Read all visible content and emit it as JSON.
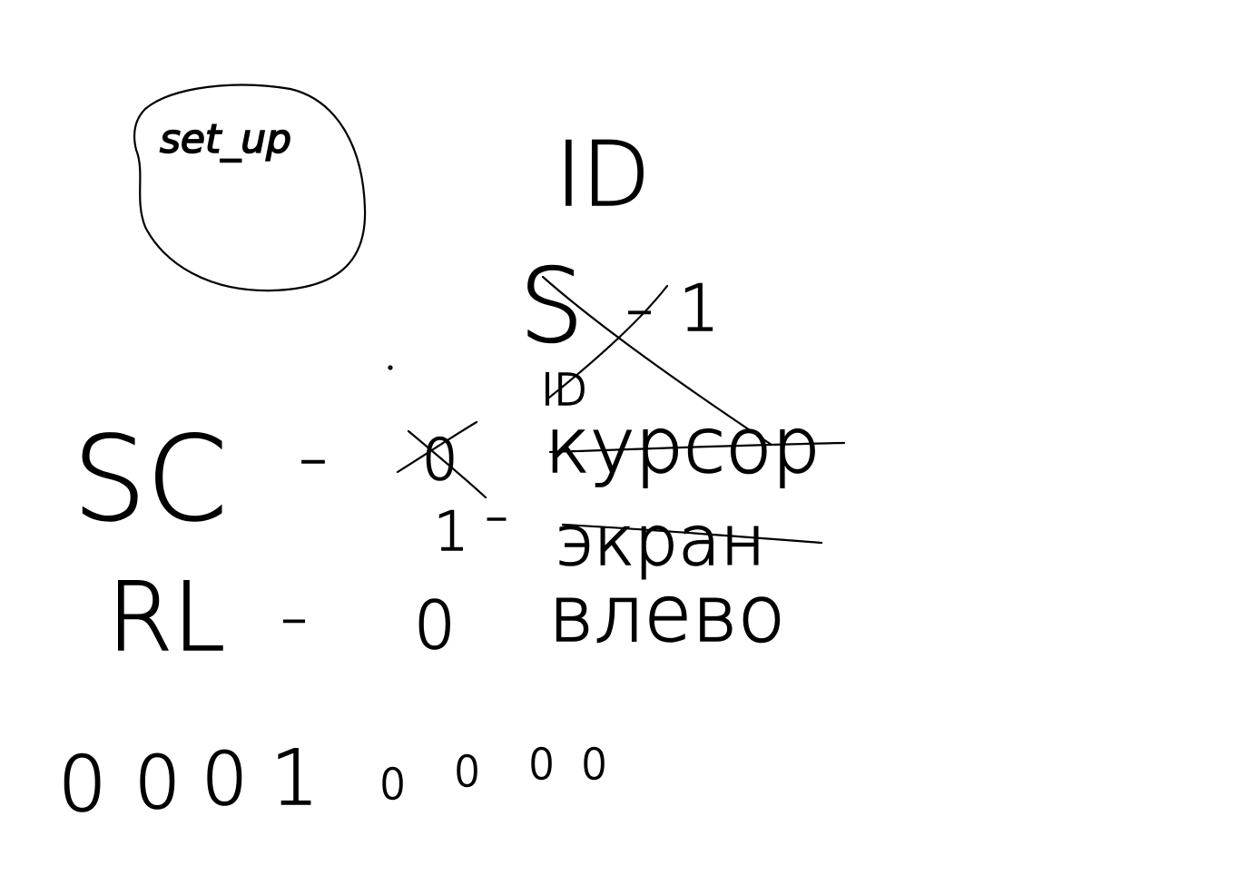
{
  "sketch": {
    "setup_bubble": {
      "label": "set_up"
    },
    "id_header": "ID",
    "s_line": {
      "symbol": "S",
      "dash": "–",
      "value": "1",
      "crossed_out": true
    },
    "id_small": "ID",
    "sc_line": {
      "symbol": "SC",
      "dash": "–",
      "old_value": "0",
      "old_value_crossed": true,
      "old_meaning": "курсор",
      "old_meaning_crossed": true,
      "new_value": "1",
      "new_dash": "–",
      "new_meaning": "экран",
      "new_meaning_crossed": true
    },
    "rl_line": {
      "symbol": "RL",
      "dash": "–",
      "value": "0",
      "meaning": "влево"
    },
    "binary_row": {
      "big_digits": [
        "0",
        "0",
        "0",
        "1"
      ],
      "small_digits": [
        "0",
        "0",
        "0",
        "0"
      ]
    }
  },
  "colors": {
    "ink": "#000000",
    "paper": "#ffffff"
  }
}
